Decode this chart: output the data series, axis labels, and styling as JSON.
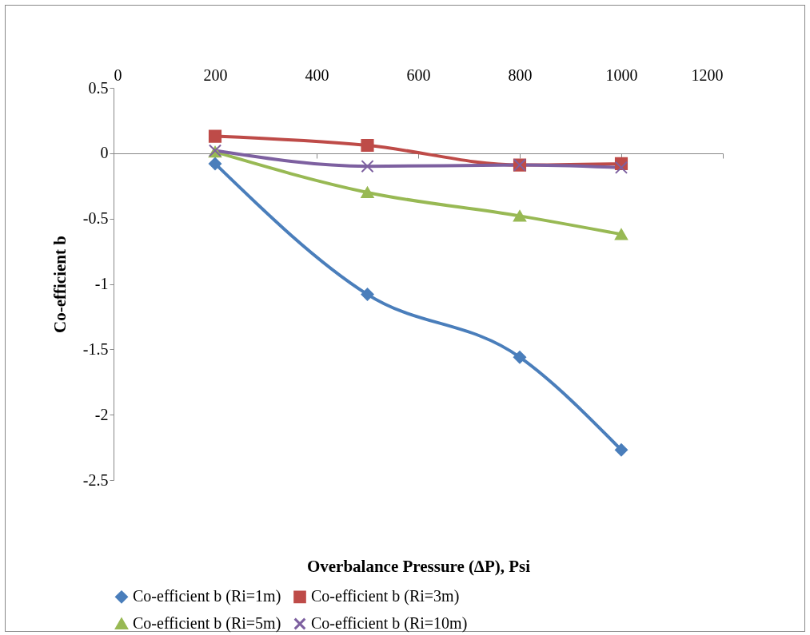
{
  "chart_data": {
    "type": "line",
    "xlabel": "Overbalance Pressure (∆P), Psi",
    "ylabel": "Co-efficient b",
    "x": [
      200,
      500,
      800,
      1000
    ],
    "series": [
      {
        "name": "Co-efficient b (Ri=1m)",
        "color": "#4a7ebb",
        "marker": "diamond",
        "values": [
          -0.08,
          -1.08,
          -1.56,
          -2.27
        ]
      },
      {
        "name": "Co-efficient b (Ri=3m)",
        "color": "#be4b48",
        "marker": "square",
        "values": [
          0.13,
          0.06,
          -0.09,
          -0.08
        ]
      },
      {
        "name": "Co-efficient b (Ri=5m)",
        "color": "#98b954",
        "marker": "triangle",
        "values": [
          0.01,
          -0.3,
          -0.48,
          -0.62
        ]
      },
      {
        "name": "Co-efficient b (Ri=10m)",
        "color": "#7d60a0",
        "marker": "cross",
        "values": [
          0.02,
          -0.1,
          -0.09,
          -0.11
        ]
      }
    ],
    "xlim": [
      0,
      1200
    ],
    "xticks": [
      0,
      200,
      400,
      600,
      800,
      1000,
      1200
    ],
    "ylim": [
      -2.5,
      0.5
    ],
    "yticks": [
      -2.5,
      -2,
      -1.5,
      -1,
      -0.5,
      0,
      0.5
    ],
    "legend": "bottom",
    "line_style": "solid"
  }
}
